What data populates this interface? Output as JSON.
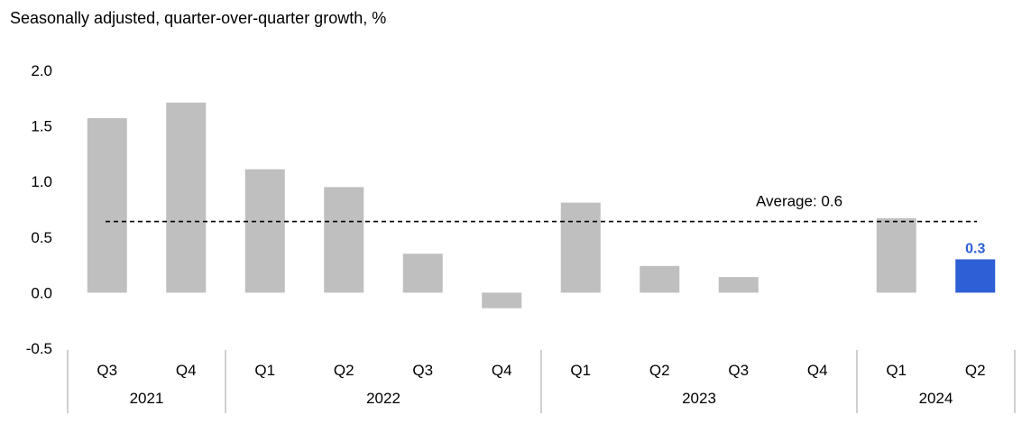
{
  "chart_data": {
    "type": "bar",
    "subtitle": "Seasonally adjusted, quarter-over-quarter growth, %",
    "categories": [
      "Q3",
      "Q4",
      "Q1",
      "Q2",
      "Q3",
      "Q4",
      "Q1",
      "Q2",
      "Q3",
      "Q4",
      "Q1",
      "Q2"
    ],
    "groups": [
      {
        "label": "2021",
        "count": 2
      },
      {
        "label": "2022",
        "count": 4
      },
      {
        "label": "2023",
        "count": 4
      },
      {
        "label": "2024",
        "count": 2
      }
    ],
    "values": [
      1.57,
      1.71,
      1.11,
      0.95,
      0.35,
      -0.14,
      0.81,
      0.24,
      0.14,
      0.0,
      0.67,
      0.3
    ],
    "highlight_index": 11,
    "highlight_label": "0.3",
    "average": {
      "value": 0.64,
      "label": "Average: 0.6"
    },
    "ylim": [
      -0.5,
      2.0
    ],
    "yticks": [
      "2.0",
      "1.5",
      "1.0",
      "0.5",
      "0.0",
      "-0.5"
    ],
    "colors": {
      "bar": "#bfbfbf",
      "highlight": "#2f5fd7",
      "text": "#000000",
      "axis": "#bfbfbf"
    }
  }
}
